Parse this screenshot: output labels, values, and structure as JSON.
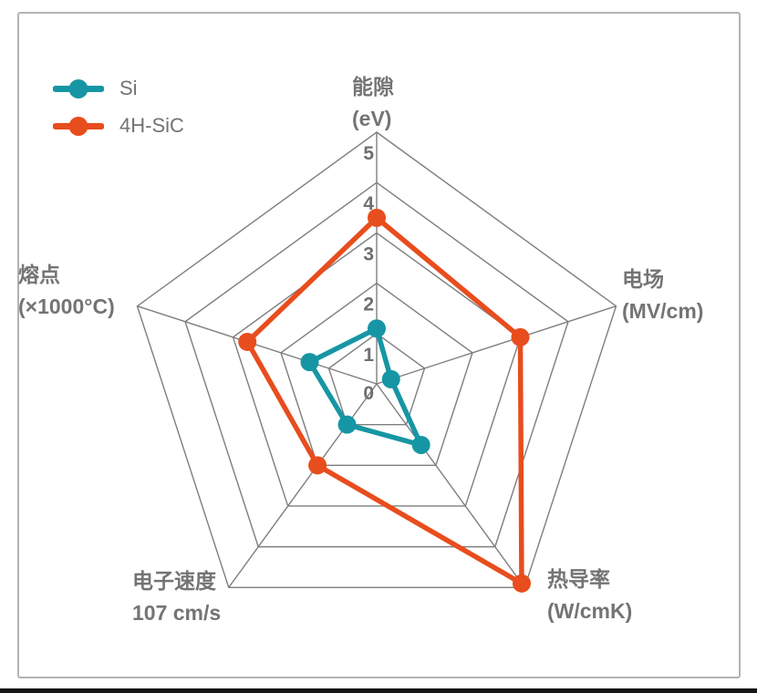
{
  "chart_data": {
    "type": "radar",
    "title": "",
    "max": 5,
    "ticks": [
      0,
      1,
      2,
      3,
      4,
      5
    ],
    "grid_color": "#7e7e7e",
    "tick_color": "#6f6f6f",
    "label_color": "#747474",
    "axes": [
      {
        "name": "能隙",
        "unit": "(eV)"
      },
      {
        "name": "电场",
        "unit": "(MV/cm)"
      },
      {
        "name": "热导率",
        "unit": "(W/cmK)"
      },
      {
        "name": "电子速度",
        "unit": "107 cm/s"
      },
      {
        "name": "熔点",
        "unit": "(×1000°C)"
      }
    ],
    "series": [
      {
        "name": "Si",
        "color": "#1696a4",
        "values": [
          1.1,
          0.3,
          1.5,
          1.0,
          1.4
        ]
      },
      {
        "name": "4H-SiC",
        "color": "#e84d1d",
        "values": [
          3.3,
          3.0,
          4.9,
          2.0,
          2.7
        ]
      }
    ],
    "legend_position": "top-left"
  }
}
